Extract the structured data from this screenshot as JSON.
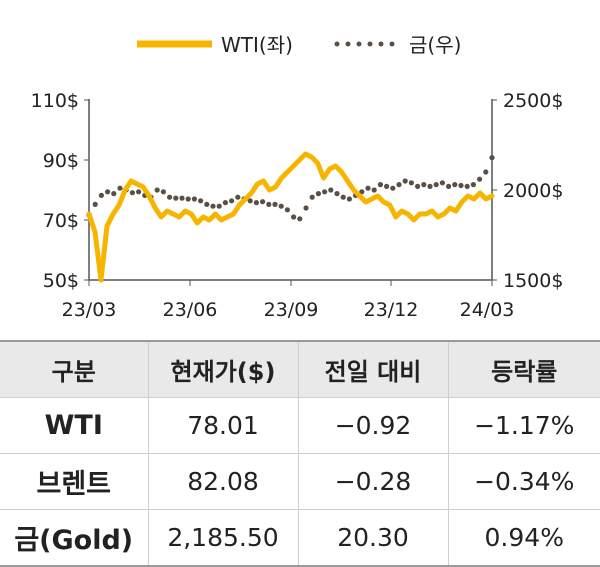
{
  "chart_data": {
    "type": "line",
    "legend": [
      {
        "label": "WTI(좌)",
        "color": "#f7b500",
        "style": "solid"
      },
      {
        "label": "금(우)",
        "color": "#5a4f45",
        "style": "dotted"
      }
    ],
    "legend_placement": "top-center",
    "x_ticks": [
      "23/03",
      "23/06",
      "23/09",
      "23/12",
      "24/03"
    ],
    "y_left": {
      "ticks": [
        "110$",
        "90$",
        "70$",
        "50$"
      ],
      "range": [
        50,
        110
      ]
    },
    "y_right": {
      "ticks": [
        "2500$",
        "2000$",
        "1500$"
      ],
      "range": [
        1500,
        2500
      ]
    },
    "series": [
      {
        "name": "WTI(좌)",
        "axis": "left",
        "values": [
          72,
          66,
          50,
          68,
          72,
          75,
          80,
          83,
          82,
          81,
          78,
          74,
          71,
          73,
          72,
          71,
          73,
          72,
          69,
          71,
          70,
          72,
          70,
          71,
          72,
          75,
          77,
          79,
          82,
          83,
          80,
          81,
          84,
          86,
          88,
          90,
          92,
          91,
          89,
          84,
          87,
          88,
          86,
          83,
          80,
          78,
          76,
          77,
          78,
          76,
          75,
          71,
          73,
          72,
          70,
          72,
          72,
          73,
          71,
          72,
          74,
          73,
          76,
          78,
          77,
          79,
          77,
          78
        ]
      },
      {
        "name": "금(우)",
        "axis": "right",
        "values": [
          1860,
          1920,
          1970,
          1990,
          1980,
          2010,
          2000,
          1985,
          1990,
          1970,
          1960,
          2000,
          1990,
          1960,
          1955,
          1955,
          1950,
          1950,
          1940,
          1920,
          1910,
          1910,
          1930,
          1940,
          1960,
          1950,
          1940,
          1930,
          1935,
          1920,
          1920,
          1910,
          1890,
          1850,
          1840,
          1900,
          1960,
          1980,
          1990,
          2000,
          1980,
          1960,
          1950,
          1970,
          1990,
          2010,
          2000,
          2030,
          2020,
          2010,
          2030,
          2050,
          2040,
          2020,
          2030,
          2020,
          2030,
          2040,
          2020,
          2030,
          2025,
          2020,
          2030,
          2060,
          2100,
          2180
        ]
      }
    ]
  },
  "table": {
    "headers": [
      "구분",
      "현재가($)",
      "전일 대비",
      "등락률"
    ],
    "rows": [
      [
        "WTI",
        "78.01",
        "−0.92",
        "−1.17%"
      ],
      [
        "브렌트",
        "82.08",
        "−0.28",
        "−0.34%"
      ],
      [
        "금(Gold)",
        "2,185.50",
        "20.30",
        "0.94%"
      ]
    ]
  }
}
